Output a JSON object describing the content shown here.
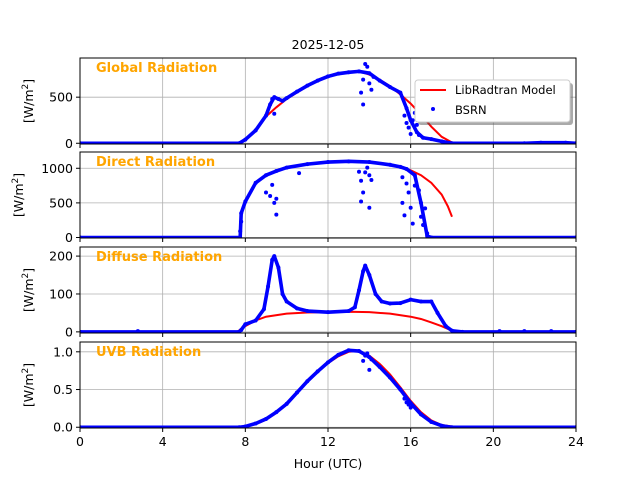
{
  "chart_data": {
    "type": "line",
    "title": "2025-12-05",
    "xlabel": "Hour (UTC)",
    "xlim": [
      0,
      24
    ],
    "xticks": [
      0,
      4,
      8,
      12,
      16,
      20,
      24
    ],
    "grid": true,
    "legend": {
      "placement": "top-right of first panel",
      "entries": [
        "LibRadtran Model",
        "BSRN"
      ]
    },
    "colors": {
      "model": "#ff0000",
      "bsrn": "#0000ff",
      "panel_title": "#ffa500"
    },
    "panels": [
      {
        "name": "Global Radiation",
        "ylabel": "[W/m2]",
        "ylim": [
          -8,
          925
        ],
        "yticks": [
          0,
          500
        ],
        "model": [
          [
            7.7,
            0
          ],
          [
            8,
            40
          ],
          [
            8.5,
            130
          ],
          [
            9,
            290
          ],
          [
            9.5,
            390
          ],
          [
            10,
            480
          ],
          [
            10.5,
            550
          ],
          [
            11,
            620
          ],
          [
            11.5,
            675
          ],
          [
            12,
            720
          ],
          [
            12.5,
            750
          ],
          [
            13,
            770
          ],
          [
            13.5,
            780
          ],
          [
            14,
            745
          ],
          [
            14.5,
            690
          ],
          [
            15,
            620
          ],
          [
            15.5,
            530
          ],
          [
            16,
            430
          ],
          [
            16.5,
            310
          ],
          [
            17,
            180
          ],
          [
            17.5,
            70
          ],
          [
            18,
            8
          ],
          [
            18.3,
            0
          ]
        ],
        "bsrn": [
          [
            0,
            0
          ],
          [
            7.7,
            0
          ],
          [
            8,
            40
          ],
          [
            8.5,
            140
          ],
          [
            9,
            300
          ],
          [
            9.2,
            420
          ],
          [
            9.4,
            500
          ],
          [
            9.6,
            480
          ],
          [
            9.8,
            460
          ],
          [
            10,
            490
          ],
          [
            10.5,
            560
          ],
          [
            11,
            625
          ],
          [
            11.5,
            680
          ],
          [
            12,
            725
          ],
          [
            12.5,
            755
          ],
          [
            13,
            770
          ],
          [
            13.5,
            780
          ],
          [
            14,
            760
          ],
          [
            14.5,
            680
          ],
          [
            15,
            610
          ],
          [
            15.5,
            550
          ],
          [
            15.8,
            380
          ],
          [
            16,
            250
          ],
          [
            16.3,
            120
          ],
          [
            16.6,
            60
          ],
          [
            17,
            45
          ],
          [
            17.5,
            20
          ],
          [
            18,
            0
          ],
          [
            21.5,
            0
          ],
          [
            22.3,
            6
          ],
          [
            23.5,
            6
          ],
          [
            24,
            0
          ]
        ],
        "bsrn_scatter": [
          [
            9.4,
            320
          ],
          [
            9.3,
            480
          ],
          [
            13.7,
            420
          ],
          [
            13.6,
            550
          ],
          [
            13.8,
            860
          ],
          [
            13.9,
            830
          ],
          [
            14,
            650
          ],
          [
            14.1,
            580
          ],
          [
            13.7,
            690
          ],
          [
            14.2,
            720
          ],
          [
            15.7,
            300
          ],
          [
            15.8,
            220
          ],
          [
            15.9,
            170
          ],
          [
            16,
            100
          ],
          [
            16.1,
            250
          ],
          [
            16.2,
            330
          ],
          [
            16.4,
            90
          ],
          [
            16.3,
            200
          ]
        ]
      },
      {
        "name": "Direct Radiation",
        "ylabel": "[W/m2]",
        "ylim": [
          -7,
          1235
        ],
        "yticks": [
          0,
          500,
          1000
        ],
        "model": [
          [
            7.8,
            350
          ],
          [
            8,
            520
          ],
          [
            8.5,
            790
          ],
          [
            9,
            900
          ],
          [
            9.5,
            960
          ],
          [
            10,
            1010
          ],
          [
            11,
            1060
          ],
          [
            12,
            1090
          ],
          [
            13,
            1100
          ],
          [
            14,
            1090
          ],
          [
            15,
            1050
          ],
          [
            15.5,
            1020
          ],
          [
            16,
            970
          ],
          [
            16.5,
            900
          ],
          [
            17,
            790
          ],
          [
            17.5,
            620
          ],
          [
            17.8,
            450
          ],
          [
            18,
            300
          ]
        ],
        "bsrn": [
          [
            0,
            0
          ],
          [
            7.75,
            0
          ],
          [
            7.8,
            350
          ],
          [
            8,
            520
          ],
          [
            8.5,
            790
          ],
          [
            9,
            900
          ],
          [
            9.5,
            960
          ],
          [
            10,
            1010
          ],
          [
            11,
            1060
          ],
          [
            12,
            1090
          ],
          [
            13,
            1100
          ],
          [
            14,
            1090
          ],
          [
            15,
            1050
          ],
          [
            15.5,
            1020
          ],
          [
            15.8,
            990
          ],
          [
            16.2,
            900
          ],
          [
            16.5,
            500
          ],
          [
            16.8,
            20
          ],
          [
            17,
            0
          ],
          [
            24,
            0
          ]
        ],
        "bsrn_scatter": [
          [
            7.8,
            230
          ],
          [
            7.75,
            90
          ],
          [
            9,
            650
          ],
          [
            9.2,
            600
          ],
          [
            9.3,
            760
          ],
          [
            9.4,
            500
          ],
          [
            9.5,
            560
          ],
          [
            9.5,
            330
          ],
          [
            10.6,
            930
          ],
          [
            13.5,
            950
          ],
          [
            13.6,
            820
          ],
          [
            13.7,
            650
          ],
          [
            13.6,
            520
          ],
          [
            13.8,
            940
          ],
          [
            13.9,
            1010
          ],
          [
            14,
            900
          ],
          [
            14.1,
            830
          ],
          [
            14,
            430
          ],
          [
            15.6,
            870
          ],
          [
            15.6,
            500
          ],
          [
            15.7,
            320
          ],
          [
            15.8,
            780
          ],
          [
            15.9,
            650
          ],
          [
            16,
            430
          ],
          [
            16.1,
            200
          ],
          [
            16.2,
            750
          ],
          [
            16.4,
            680
          ],
          [
            16.5,
            300
          ],
          [
            16.6,
            180
          ],
          [
            16.7,
            420
          ],
          [
            16.8,
            60
          ]
        ]
      },
      {
        "name": "Diffuse Radiation",
        "ylabel": "[W/m2]",
        "ylim": [
          -3,
          224
        ],
        "yticks": [
          0,
          100,
          200
        ],
        "model": [
          [
            7.6,
            0
          ],
          [
            8,
            15
          ],
          [
            8.5,
            30
          ],
          [
            9,
            40
          ],
          [
            10,
            48
          ],
          [
            11,
            51
          ],
          [
            12,
            52
          ],
          [
            13,
            53
          ],
          [
            14,
            52
          ],
          [
            15,
            48
          ],
          [
            16,
            40
          ],
          [
            16.5,
            34
          ],
          [
            17,
            25
          ],
          [
            17.5,
            15
          ],
          [
            18,
            3
          ],
          [
            18.2,
            0
          ]
        ],
        "bsrn": [
          [
            0,
            0
          ],
          [
            7.7,
            0
          ],
          [
            7.8,
            5
          ],
          [
            8,
            20
          ],
          [
            8.5,
            30
          ],
          [
            8.9,
            60
          ],
          [
            9.1,
            120
          ],
          [
            9.3,
            190
          ],
          [
            9.4,
            200
          ],
          [
            9.6,
            170
          ],
          [
            9.8,
            100
          ],
          [
            10,
            80
          ],
          [
            10.5,
            62
          ],
          [
            11,
            55
          ],
          [
            12,
            52
          ],
          [
            13,
            55
          ],
          [
            13.3,
            65
          ],
          [
            13.5,
            110
          ],
          [
            13.7,
            160
          ],
          [
            13.8,
            175
          ],
          [
            14,
            150
          ],
          [
            14.3,
            100
          ],
          [
            14.6,
            80
          ],
          [
            15,
            75
          ],
          [
            15.5,
            76
          ],
          [
            16,
            85
          ],
          [
            16.5,
            80
          ],
          [
            17,
            80
          ],
          [
            17.3,
            50
          ],
          [
            17.7,
            15
          ],
          [
            18,
            3
          ],
          [
            18.5,
            0
          ],
          [
            24,
            0
          ]
        ],
        "bsrn_scatter": [
          [
            2.8,
            2
          ],
          [
            20.3,
            2
          ],
          [
            21.5,
            2
          ],
          [
            22.8,
            2
          ]
        ]
      },
      {
        "name": "UVB Radiation",
        "ylabel": "[W/m2]",
        "ylim": [
          -0.01,
          1.13
        ],
        "yticks": [
          0.0,
          0.5,
          1.0
        ],
        "model": [
          [
            7.6,
            0
          ],
          [
            8,
            0.01
          ],
          [
            8.5,
            0.04
          ],
          [
            9,
            0.1
          ],
          [
            9.5,
            0.19
          ],
          [
            10,
            0.3
          ],
          [
            10.5,
            0.45
          ],
          [
            11,
            0.6
          ],
          [
            11.5,
            0.73
          ],
          [
            12,
            0.85
          ],
          [
            12.5,
            0.94
          ],
          [
            13,
            1.0
          ],
          [
            13.4,
            1.01
          ],
          [
            14,
            0.95
          ],
          [
            14.5,
            0.84
          ],
          [
            15,
            0.7
          ],
          [
            15.5,
            0.53
          ],
          [
            16,
            0.35
          ],
          [
            16.5,
            0.2
          ],
          [
            17,
            0.09
          ],
          [
            17.5,
            0.03
          ],
          [
            18,
            0.01
          ],
          [
            18.3,
            0
          ]
        ],
        "bsrn": [
          [
            0,
            0
          ],
          [
            7.7,
            0
          ],
          [
            8,
            0.01
          ],
          [
            8.5,
            0.05
          ],
          [
            9,
            0.11
          ],
          [
            9.5,
            0.2
          ],
          [
            10,
            0.31
          ],
          [
            10.5,
            0.46
          ],
          [
            11,
            0.61
          ],
          [
            11.5,
            0.74
          ],
          [
            12,
            0.86
          ],
          [
            12.5,
            0.96
          ],
          [
            13,
            1.02
          ],
          [
            13.5,
            1.01
          ],
          [
            14,
            0.93
          ],
          [
            14.5,
            0.8
          ],
          [
            15,
            0.66
          ],
          [
            15.5,
            0.5
          ],
          [
            16,
            0.32
          ],
          [
            16.5,
            0.17
          ],
          [
            17,
            0.07
          ],
          [
            17.5,
            0.02
          ],
          [
            18,
            0
          ],
          [
            24,
            0
          ]
        ],
        "bsrn_scatter": [
          [
            13.7,
            0.88
          ],
          [
            13.8,
            0.95
          ],
          [
            13.9,
            0.98
          ],
          [
            14,
            0.76
          ],
          [
            14.1,
            0.9
          ],
          [
            15.7,
            0.38
          ],
          [
            15.8,
            0.33
          ],
          [
            15.9,
            0.3
          ],
          [
            16,
            0.26
          ]
        ]
      }
    ]
  }
}
